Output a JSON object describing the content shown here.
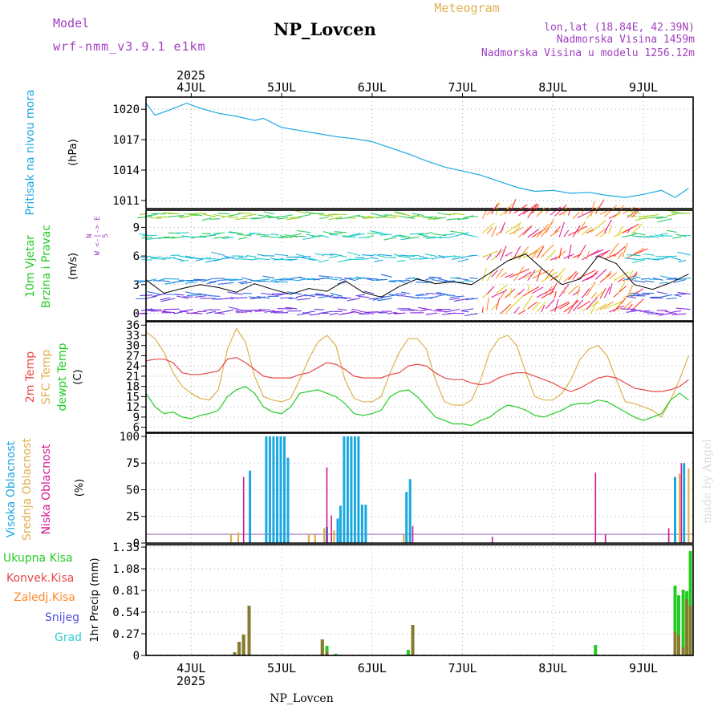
{
  "header": {
    "model_label": "Model",
    "model_name": "wrf-nmm_v3.9.1 e1km",
    "title": "NP_Lovcen",
    "meteogram": "Meteogram",
    "lonlat": "lon,lat (18.84E, 42.39N)",
    "elevation": "Nadmorska Visina 1459m",
    "model_elevation": "Nadmorska Visina u modelu 1256.12m"
  },
  "footer": {
    "station": "NP_Lovcen",
    "watermark": "made by Angel"
  },
  "colors": {
    "pressure": "#1aa8e0",
    "t2m": "#e84848",
    "tsfc": "#e0b050",
    "dewpt": "#22cc22",
    "high": "#1aa8e0",
    "mid": "#e0b050",
    "low": "#d01890",
    "total": "#22cc22",
    "conv": "#e84848",
    "frozen": "#ff8a2a",
    "snow": "#5050e0",
    "hail": "#30d0d0"
  },
  "chart_data": [
    {
      "type": "line",
      "id": "pressure",
      "ylabel": [
        "Pritisak na nivou mora",
        "(hPa)"
      ],
      "x_top_labels": [
        "4JUL",
        "5JUL",
        "6JUL",
        "7JUL",
        "8JUL",
        "9JUL"
      ],
      "x_top_year": "2025",
      "yticks": [
        1011,
        1014,
        1017,
        1020
      ],
      "ylim": [
        1010.2,
        1021.2
      ],
      "x_days": [
        3.5,
        3.6,
        3.75,
        3.95,
        4.1,
        4.3,
        4.5,
        4.7,
        4.8,
        5.0,
        5.2,
        5.4,
        5.6,
        5.8,
        6.0,
        6.2,
        6.4,
        6.6,
        6.8,
        7.0,
        7.2,
        7.4,
        7.6,
        7.8,
        8.0,
        8.2,
        8.4,
        8.6,
        8.8,
        9.0,
        9.2,
        9.35,
        9.5
      ],
      "series": [
        {
          "values": [
            1020.6,
            1019.4,
            1019.9,
            1020.6,
            1020.1,
            1019.6,
            1019.3,
            1018.9,
            1019.1,
            1018.2,
            1017.9,
            1017.6,
            1017.3,
            1017.1,
            1016.8,
            1016.2,
            1015.6,
            1014.9,
            1014.3,
            1013.9,
            1013.5,
            1012.9,
            1012.3,
            1011.9,
            1012.0,
            1011.7,
            1011.8,
            1011.5,
            1011.3,
            1011.6,
            1012.0,
            1011.3,
            1012.2
          ]
        }
      ]
    },
    {
      "type": "line",
      "id": "wind",
      "ylabel": [
        "10m Vjetar",
        "Brzina i Pravac",
        "(m/s)"
      ],
      "compass": "N\nW <-|-> E\nS",
      "yticks": [
        0,
        3,
        6,
        9
      ],
      "ylim": [
        -0.8,
        10.8
      ],
      "x_days": [
        3.5,
        3.7,
        3.9,
        4.1,
        4.3,
        4.5,
        4.7,
        4.9,
        5.1,
        5.3,
        5.5,
        5.7,
        5.9,
        6.1,
        6.3,
        6.5,
        6.7,
        6.9,
        7.1,
        7.3,
        7.5,
        7.7,
        7.9,
        8.1,
        8.3,
        8.5,
        8.7,
        8.9,
        9.1,
        9.3,
        9.5
      ],
      "series": [
        {
          "name": "speed",
          "values": [
            3.5,
            2.1,
            2.6,
            3.0,
            2.7,
            2.2,
            3.1,
            2.5,
            2.0,
            2.6,
            2.3,
            3.4,
            2.2,
            1.7,
            2.8,
            3.6,
            3.1,
            3.3,
            3.0,
            4.2,
            5.5,
            6.2,
            4.5,
            3.0,
            3.6,
            6.0,
            5.2,
            3.0,
            2.5,
            3.2,
            4.1
          ]
        }
      ]
    },
    {
      "type": "line",
      "id": "temperature",
      "ylabel": [
        "2m Temp",
        "SFC Temp",
        "dewpt Temp",
        "(C)"
      ],
      "yticks": [
        6,
        9,
        12,
        15,
        18,
        21,
        24,
        27,
        30,
        33,
        36
      ],
      "ylim": [
        4.5,
        37
      ],
      "x_days": [
        3.5,
        3.6,
        3.7,
        3.8,
        3.9,
        4.0,
        4.1,
        4.2,
        4.3,
        4.4,
        4.5,
        4.6,
        4.7,
        4.8,
        4.9,
        5.0,
        5.1,
        5.2,
        5.3,
        5.4,
        5.5,
        5.6,
        5.7,
        5.8,
        5.9,
        6.0,
        6.1,
        6.2,
        6.3,
        6.4,
        6.5,
        6.6,
        6.7,
        6.8,
        6.9,
        7.0,
        7.1,
        7.2,
        7.3,
        7.4,
        7.5,
        7.6,
        7.7,
        7.8,
        7.9,
        8.0,
        8.1,
        8.2,
        8.3,
        8.4,
        8.5,
        8.6,
        8.7,
        8.8,
        8.9,
        9.0,
        9.1,
        9.2,
        9.3,
        9.4,
        9.5
      ],
      "series": [
        {
          "name": "2m Temp",
          "values": [
            25.5,
            26,
            26,
            25,
            22,
            21.5,
            21.5,
            22,
            22.5,
            26,
            26.5,
            25,
            23,
            21,
            20.5,
            20.5,
            20.5,
            21.5,
            22,
            23.5,
            25,
            24.5,
            23,
            21,
            20.5,
            20.5,
            20.5,
            21.5,
            22,
            24,
            24.5,
            24,
            22,
            20.5,
            20,
            20,
            19,
            18.5,
            19,
            20.5,
            21.5,
            22,
            22,
            21,
            20,
            19,
            17.5,
            16.5,
            17.5,
            19,
            20.5,
            21,
            20.5,
            19,
            17.5,
            17,
            16.5,
            16.5,
            17,
            18,
            20
          ]
        },
        {
          "name": "SFC Temp",
          "values": [
            34,
            32,
            28,
            22,
            18,
            16,
            14.5,
            14,
            17,
            29,
            35,
            31,
            21,
            15,
            14,
            13.5,
            14.5,
            20,
            26,
            31,
            33,
            30,
            20,
            14.5,
            13.5,
            13.5,
            15,
            22,
            28,
            32,
            32,
            29,
            20,
            13.5,
            12.5,
            12.5,
            14,
            20,
            28,
            32,
            33,
            30,
            22,
            15,
            14,
            14,
            16,
            20,
            26,
            29,
            30,
            27,
            20,
            13.5,
            13,
            12,
            11,
            9,
            14,
            20,
            27
          ]
        },
        {
          "name": "dewpt Temp",
          "values": [
            16,
            12,
            10,
            10.5,
            9,
            8.5,
            9.5,
            10,
            11,
            15,
            17,
            18,
            16,
            12,
            10.5,
            10,
            12,
            16,
            16.5,
            17,
            16,
            15,
            13,
            10,
            9.5,
            10,
            11,
            15,
            16.5,
            17,
            15,
            12,
            9,
            8,
            7,
            7,
            6.5,
            8,
            9,
            11,
            12.5,
            12,
            11,
            9.5,
            9,
            10,
            11,
            12.5,
            13,
            13,
            14,
            13.5,
            12,
            10.5,
            9,
            8,
            9,
            10,
            14,
            16,
            14
          ]
        }
      ]
    },
    {
      "type": "bar",
      "id": "cloud",
      "ylabel": [
        "Visoka Oblacnost",
        "Srednja Oblacnost",
        "Niska Oblacnost",
        "(%)"
      ],
      "yticks": [
        0,
        25,
        50,
        75,
        100
      ],
      "ylim": [
        0,
        103
      ],
      "series": [
        {
          "name": "Visoka Oblacnost",
          "bars": [
            [
              4.65,
              68
            ],
            [
              4.83,
              100
            ],
            [
              4.87,
              100
            ],
            [
              4.91,
              100
            ],
            [
              4.95,
              100
            ],
            [
              4.99,
              100
            ],
            [
              5.03,
              100
            ],
            [
              5.07,
              80
            ],
            [
              5.5,
              15
            ],
            [
              5.62,
              23
            ],
            [
              5.65,
              35
            ],
            [
              5.69,
              100
            ],
            [
              5.73,
              100
            ],
            [
              5.77,
              100
            ],
            [
              5.81,
              100
            ],
            [
              5.85,
              100
            ],
            [
              5.89,
              36
            ],
            [
              5.93,
              36
            ],
            [
              6.38,
              48
            ],
            [
              6.42,
              60
            ],
            [
              9.35,
              62
            ],
            [
              9.45,
              75
            ]
          ]
        },
        {
          "name": "Srednja Oblacnost",
          "bars": [
            [
              4.44,
              9
            ],
            [
              4.52,
              10
            ],
            [
              5.3,
              9
            ],
            [
              5.37,
              8
            ],
            [
              5.47,
              14
            ],
            [
              5.58,
              12
            ],
            [
              6.35,
              8
            ],
            [
              9.4,
              65
            ],
            [
              9.5,
              70
            ]
          ]
        },
        {
          "name": "Niska Oblacnost",
          "bars": [
            [
              4.58,
              62
            ],
            [
              5.5,
              71
            ],
            [
              5.55,
              26
            ],
            [
              6.45,
              16
            ],
            [
              7.33,
              6
            ],
            [
              8.47,
              66
            ],
            [
              8.58,
              8
            ],
            [
              9.28,
              14
            ],
            [
              9.42,
              75
            ]
          ]
        }
      ]
    },
    {
      "type": "bar",
      "id": "precip",
      "ylabel": [
        "1hr Precip (mm)"
      ],
      "legend": [
        "Ukupna Kisa",
        "Konvek.Kisa",
        "Zaledj.Kisa",
        "Snijeg",
        "Grad"
      ],
      "x_bottom_labels": [
        "4JUL",
        "5JUL",
        "6JUL",
        "7JUL",
        "8JUL",
        "9JUL"
      ],
      "x_bottom_year": "2025",
      "yticks": [
        0,
        0.27,
        0.54,
        0.81,
        1.08,
        1.35
      ],
      "ylim": [
        0,
        1.38
      ],
      "series": [
        {
          "name": "Ukupna Kisa",
          "bars": [
            [
              4.48,
              0.04
            ],
            [
              4.53,
              0.17
            ],
            [
              4.58,
              0.26
            ],
            [
              4.64,
              0.62
            ],
            [
              5.45,
              0.2
            ],
            [
              5.5,
              0.12
            ],
            [
              5.6,
              0.02
            ],
            [
              6.4,
              0.07
            ],
            [
              6.45,
              0.38
            ],
            [
              8.47,
              0.13
            ],
            [
              9.35,
              0.87
            ],
            [
              9.39,
              0.75
            ],
            [
              9.44,
              0.82
            ],
            [
              9.48,
              0.8
            ],
            [
              9.52,
              1.3
            ]
          ]
        },
        {
          "name": "Konvek.Kisa",
          "bars": [
            [
              4.48,
              0.04
            ],
            [
              4.53,
              0.17
            ],
            [
              4.58,
              0.26
            ],
            [
              4.64,
              0.62
            ],
            [
              5.45,
              0.2
            ],
            [
              5.5,
              0.05
            ],
            [
              6.45,
              0.38
            ],
            [
              9.35,
              0.3
            ],
            [
              9.39,
              0.25
            ],
            [
              9.44,
              0.1
            ],
            [
              9.48,
              0.7
            ],
            [
              9.52,
              0.62
            ]
          ]
        }
      ]
    }
  ]
}
